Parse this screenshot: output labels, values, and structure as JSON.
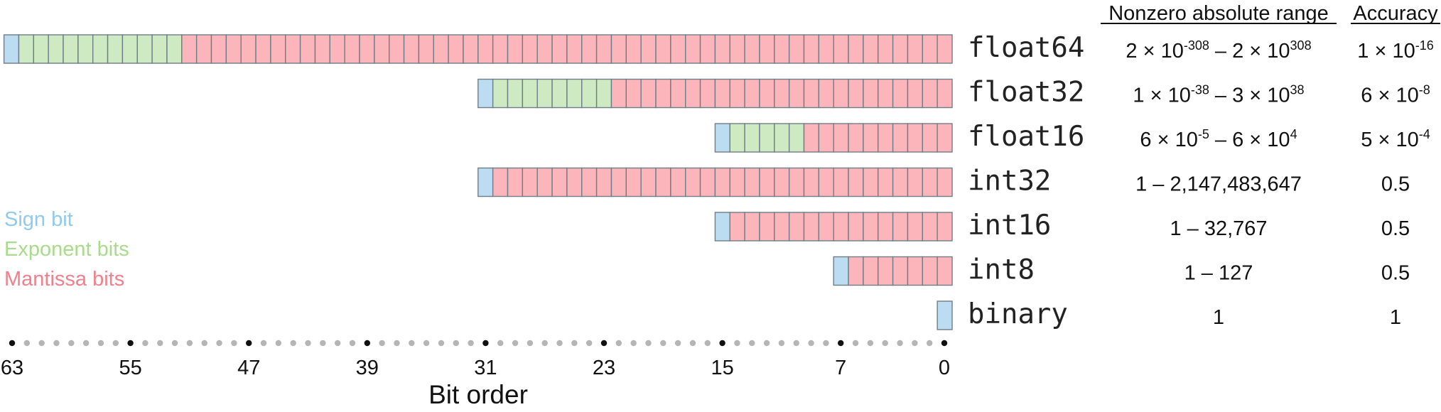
{
  "header": {
    "range_title": "Nonzero absolute range",
    "accuracy_title": "Accuracy"
  },
  "colors": {
    "sign": "#bcdcf2",
    "exponent": "#cdeac2",
    "mantissa": "#fcb5bb",
    "cell_border": "#6f7d86",
    "sign_text": "#8fcbee",
    "exponent_text": "#a9db8c",
    "mantissa_text": "#f0808c"
  },
  "legend": {
    "sign": "Sign bit",
    "exponent": "Exponent bits",
    "mantissa": "Mantissa bits"
  },
  "types": [
    {
      "name": "float64",
      "sign": 1,
      "exponent": 11,
      "mantissa": 52,
      "range": {
        "a": "2",
        "ae": "-308",
        "b": "2",
        "be": "308"
      },
      "accuracy": {
        "m": "1",
        "e": "-16"
      }
    },
    {
      "name": "float32",
      "sign": 1,
      "exponent": 8,
      "mantissa": 23,
      "range": {
        "a": "1",
        "ae": "-38",
        "b": "3",
        "be": "38"
      },
      "accuracy": {
        "m": "6",
        "e": "-8"
      }
    },
    {
      "name": "float16",
      "sign": 1,
      "exponent": 5,
      "mantissa": 10,
      "range": {
        "a": "6",
        "ae": "-5",
        "b": "6",
        "be": "4"
      },
      "accuracy": {
        "m": "5",
        "e": "-4"
      }
    },
    {
      "name": "int32",
      "sign": 1,
      "exponent": 0,
      "mantissa": 31,
      "range_text": "1 – 2,147,483,647",
      "accuracy_text": "0.5"
    },
    {
      "name": "int16",
      "sign": 1,
      "exponent": 0,
      "mantissa": 15,
      "range_text": "1 – 32,767",
      "accuracy_text": "0.5"
    },
    {
      "name": "int8",
      "sign": 1,
      "exponent": 0,
      "mantissa": 7,
      "range_text": "1 – 127",
      "accuracy_text": "0.5"
    },
    {
      "name": "binary",
      "sign": 1,
      "exponent": 0,
      "mantissa": 0,
      "range_text": "1",
      "accuracy_text": "1"
    }
  ],
  "axis": {
    "title": "Bit order",
    "tick_labels": [
      63,
      55,
      47,
      39,
      31,
      23,
      15,
      7,
      0
    ],
    "bits": 64
  }
}
